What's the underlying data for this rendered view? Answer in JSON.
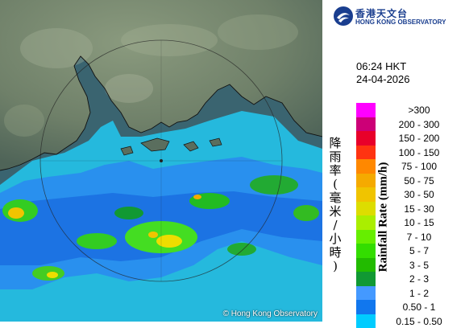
{
  "observatory": {
    "name_zh": "香港天文台",
    "name_en": "HONG KONG OBSERVATORY",
    "copyright": "© Hong Kong Observatory"
  },
  "timestamp": {
    "time": "06:24 HKT",
    "date": "24-04-2026"
  },
  "legend": {
    "title_zh": "降雨率(毫米/小時)",
    "title_en": "Rainfall Rate (mm/h)",
    "items": [
      {
        "range": ">300",
        "color": "#ff00ff"
      },
      {
        "range": "200 - 300",
        "color": "#cc0077"
      },
      {
        "range": "150 - 200",
        "color": "#e8002a"
      },
      {
        "range": "100 - 150",
        "color": "#ff3311"
      },
      {
        "range": "75 - 100",
        "color": "#ff8800"
      },
      {
        "range": "50 - 75",
        "color": "#f5aa00"
      },
      {
        "range": "30 - 50",
        "color": "#f0c400"
      },
      {
        "range": "15 - 30",
        "color": "#dddd00"
      },
      {
        "range": "10 - 15",
        "color": "#aaee00"
      },
      {
        "range": "7 - 10",
        "color": "#66ee00"
      },
      {
        "range": "5 - 7",
        "color": "#33dd00"
      },
      {
        "range": "3 - 5",
        "color": "#22bb00"
      },
      {
        "range": "2 - 3",
        "color": "#119933"
      },
      {
        "range": "1 - 2",
        "color": "#4499ff"
      },
      {
        "range": "0.50 - 1",
        "color": "#1177ee"
      },
      {
        "range": "0.15 - 0.50",
        "color": "#00ccff"
      }
    ]
  }
}
